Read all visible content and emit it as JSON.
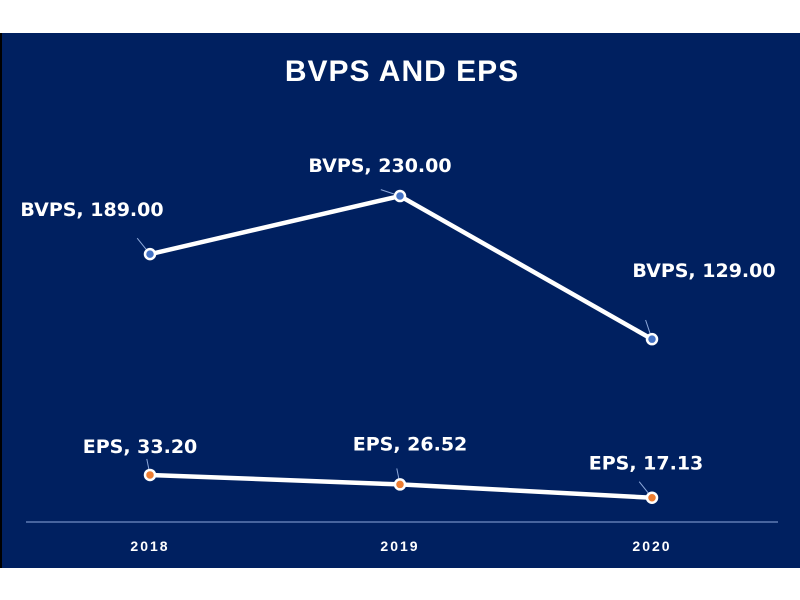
{
  "chart_data": {
    "type": "line",
    "title": "BVPS AND EPS",
    "categories": [
      "2018",
      "2019",
      "2020"
    ],
    "series": [
      {
        "name": "BVPS",
        "values": [
          189.0,
          230.0,
          129.0
        ],
        "labels": [
          "BVPS,  189.00",
          "BVPS,  230.00",
          "BVPS,  129.00"
        ],
        "marker_color": "#4472c4"
      },
      {
        "name": "EPS",
        "values": [
          33.2,
          26.52,
          17.13
        ],
        "labels": [
          "EPS,  33.20",
          "EPS,  26.52",
          "EPS,  17.13"
        ],
        "marker_color": "#ed7d31"
      }
    ],
    "xlabel": "",
    "ylabel": "",
    "ylim": [
      0,
      290
    ],
    "grid": false,
    "legend": "none",
    "colors": {
      "background": "#002060",
      "line": "#ffffff",
      "axis": "#8ea9db",
      "text": "#ffffff"
    }
  }
}
